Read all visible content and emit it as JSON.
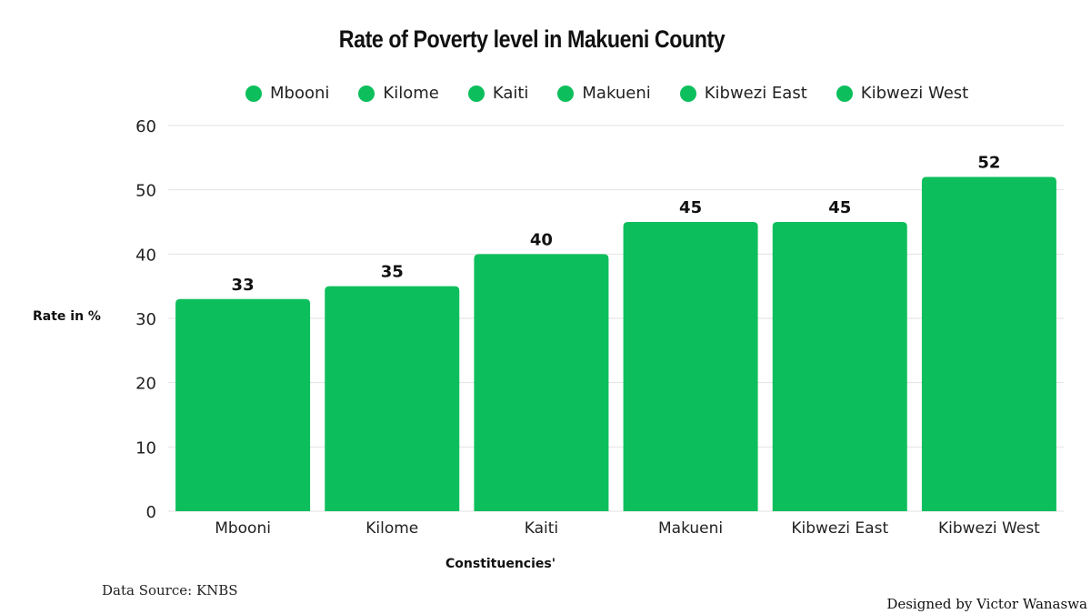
{
  "chart_data": {
    "type": "bar",
    "title": "Rate of Poverty level in Makueni County",
    "categories": [
      "Mbooni",
      "Kilome",
      "Kaiti",
      "Makueni",
      "Kibwezi East",
      "Kibwezi West"
    ],
    "values": [
      33,
      35,
      40,
      45,
      45,
      52
    ],
    "xlabel": "Constituencies'",
    "ylabel": "Rate in %",
    "ylim": [
      0,
      60
    ],
    "yticks": [
      0,
      10,
      20,
      30,
      40,
      50,
      60
    ],
    "grid": true,
    "legend": {
      "placement": "top",
      "entries": [
        "Mbooni",
        "Kilome",
        "Kaiti",
        "Makueni",
        "Kibwezi East",
        "Kibwezi West"
      ]
    },
    "color": "#0dbf5c"
  },
  "footer": {
    "source": "Data Source: KNBS",
    "credit": "Designed by Victor Wanaswa"
  }
}
